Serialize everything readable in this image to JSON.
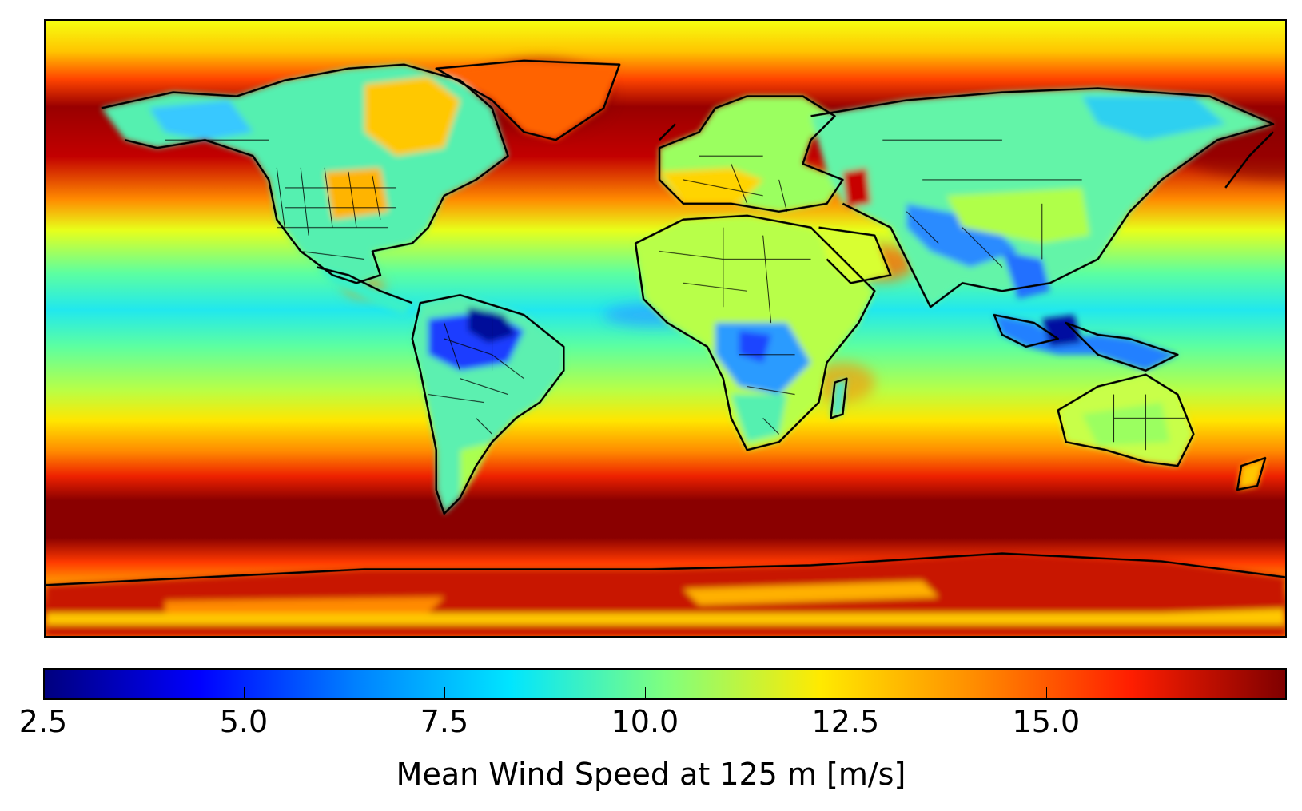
{
  "map": {
    "projection": "equirectangular",
    "colormap": "jet",
    "coastlines": true,
    "country_borders": true
  },
  "colorbar": {
    "label": "Mean Wind Speed at 125 m [m/s]",
    "min": 2.5,
    "max": 18.0,
    "ticks": [
      {
        "value": 2.5,
        "label": "2.5"
      },
      {
        "value": 5.0,
        "label": "5.0"
      },
      {
        "value": 7.5,
        "label": "7.5"
      },
      {
        "value": 10.0,
        "label": "10.0"
      },
      {
        "value": 12.5,
        "label": "12.5"
      },
      {
        "value": 15.0,
        "label": "15.0"
      }
    ],
    "colors": [
      "#00007f",
      "#0000ff",
      "#0080ff",
      "#00e5ff",
      "#7fff7f",
      "#ffea00",
      "#ff8c00",
      "#ff1e00",
      "#7f0000"
    ]
  }
}
